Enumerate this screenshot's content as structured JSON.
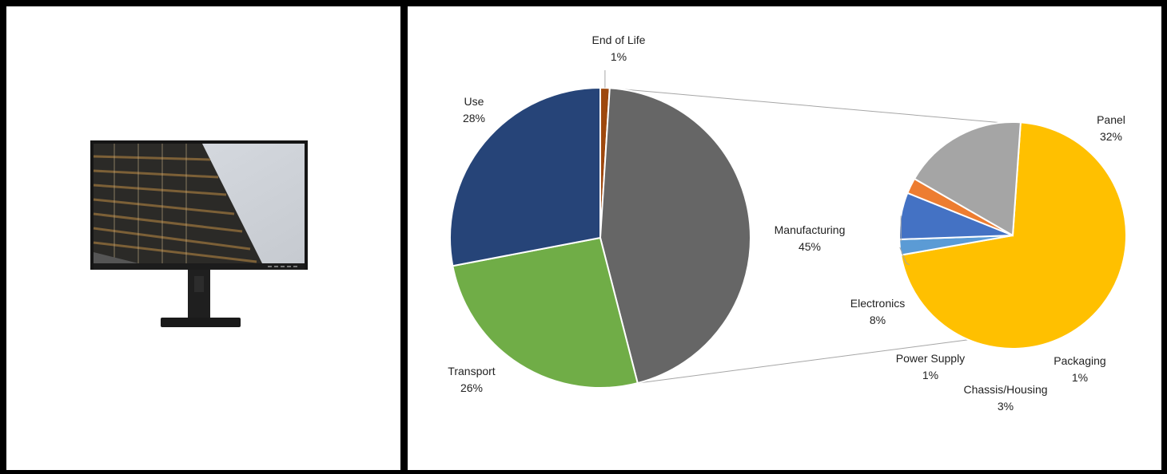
{
  "product_image": {
    "icon": "monitor-photo"
  },
  "chart_data": [
    {
      "type": "pie",
      "title": "",
      "slices": [
        {
          "label": "End of Life",
          "value": 1,
          "value_label": "1%",
          "color": "#9E480E"
        },
        {
          "label": "Manufacturing",
          "value": 45,
          "value_label": "45%",
          "color": "#666666"
        },
        {
          "label": "Transport",
          "value": 26,
          "value_label": "26%",
          "color": "#70AD47"
        },
        {
          "label": "Use",
          "value": 28,
          "value_label": "28%",
          "color": "#264478"
        }
      ]
    },
    {
      "type": "pie",
      "title": "",
      "breakdown_of": "Manufacturing",
      "slices": [
        {
          "label": "Panel",
          "value": 32,
          "value_label": "32%",
          "color": "#FFC000"
        },
        {
          "label": "Packaging",
          "value": 1,
          "value_label": "1%",
          "color": "#5B9BD5"
        },
        {
          "label": "Chassis/Housing",
          "value": 3,
          "value_label": "3%",
          "color": "#4472C4"
        },
        {
          "label": "Power Supply",
          "value": 1,
          "value_label": "1%",
          "color": "#ED7D31"
        },
        {
          "label": "Electronics",
          "value": 8,
          "value_label": "8%",
          "color": "#A5A5A5"
        }
      ]
    }
  ]
}
